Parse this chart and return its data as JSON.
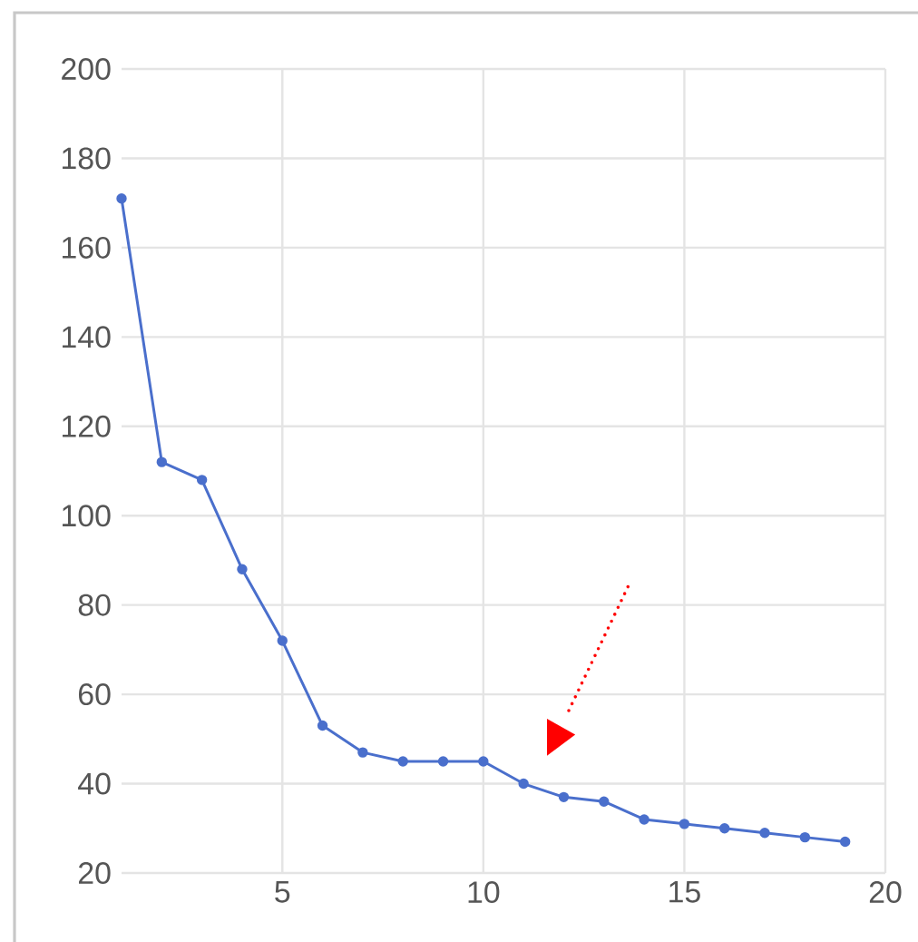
{
  "chart_data": {
    "type": "line",
    "x": [
      1,
      2,
      3,
      4,
      5,
      6,
      7,
      8,
      9,
      10,
      11,
      12,
      13,
      14,
      15,
      16,
      17,
      18,
      19
    ],
    "series": [
      {
        "color": "#4a6fcc",
        "values": [
          171,
          112,
          108,
          88,
          72,
          53,
          47,
          45,
          45,
          45,
          40,
          37,
          36,
          32,
          31,
          30,
          29,
          28,
          27
        ]
      }
    ],
    "xlim": [
      1,
      20
    ],
    "xticks": [
      5,
      10,
      15,
      20
    ],
    "ylim": [
      20,
      200
    ],
    "yticks": [
      20,
      40,
      60,
      80,
      100,
      120,
      140,
      160,
      180,
      200
    ],
    "grid": true,
    "marker": "circle",
    "line_style": "solid"
  }
}
